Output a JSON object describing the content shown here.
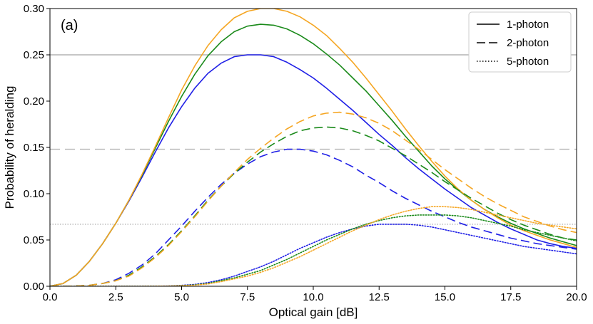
{
  "chart_data": {
    "type": "line",
    "title": "",
    "panel_label": "(a)",
    "xlabel": "Optical gain [dB]",
    "ylabel": "Probability of heralding",
    "xlim": [
      0,
      20
    ],
    "ylim": [
      0,
      0.3
    ],
    "xticks": [
      "0.0",
      "2.5",
      "5.0",
      "7.5",
      "10.0",
      "12.5",
      "15.0",
      "17.5",
      "20.0"
    ],
    "yticks": [
      "0.00",
      "0.05",
      "0.10",
      "0.15",
      "0.20",
      "0.25",
      "0.30"
    ],
    "grid": false,
    "legend": {
      "placement": "top-right",
      "entries": [
        {
          "label": "1-photon",
          "dash": "solid"
        },
        {
          "label": "2-photon",
          "dash": "dashed"
        },
        {
          "label": "5-photon",
          "dash": "dotted"
        }
      ]
    },
    "colors": {
      "blue": "#1f1fe6",
      "green": "#1a8a1a",
      "orange": "#f5a623",
      "reference": "#b4b4b4"
    },
    "reference_lines": [
      {
        "y": 0.25,
        "dash": "solid"
      },
      {
        "y": 0.148,
        "dash": "dashed"
      },
      {
        "y": 0.067,
        "dash": "dotted"
      }
    ],
    "x": [
      0,
      0.5,
      1,
      1.5,
      2,
      2.5,
      3,
      3.5,
      4,
      4.5,
      5,
      5.5,
      6,
      6.5,
      7,
      7.5,
      8,
      8.5,
      9,
      9.5,
      10,
      10.5,
      11,
      11.5,
      12,
      12.5,
      13,
      13.5,
      14,
      14.5,
      15,
      15.5,
      16,
      16.5,
      17,
      17.5,
      18,
      18.5,
      19,
      19.5,
      20
    ],
    "series": [
      {
        "name": "1-photon blue",
        "color": "blue",
        "dash": "solid",
        "values": [
          0,
          0.003,
          0.012,
          0.027,
          0.046,
          0.068,
          0.092,
          0.118,
          0.145,
          0.171,
          0.194,
          0.214,
          0.23,
          0.241,
          0.248,
          0.25,
          0.25,
          0.248,
          0.242,
          0.234,
          0.225,
          0.214,
          0.202,
          0.19,
          0.177,
          0.164,
          0.152,
          0.139,
          0.127,
          0.116,
          0.105,
          0.095,
          0.085,
          0.077,
          0.069,
          0.062,
          0.056,
          0.05,
          0.046,
          0.043,
          0.041
        ]
      },
      {
        "name": "1-photon green",
        "color": "green",
        "dash": "solid",
        "values": [
          0,
          0.003,
          0.012,
          0.027,
          0.046,
          0.068,
          0.093,
          0.12,
          0.149,
          0.178,
          0.205,
          0.229,
          0.249,
          0.264,
          0.275,
          0.281,
          0.283,
          0.282,
          0.278,
          0.271,
          0.262,
          0.251,
          0.239,
          0.225,
          0.211,
          0.195,
          0.179,
          0.162,
          0.146,
          0.13,
          0.116,
          0.104,
          0.093,
          0.083,
          0.075,
          0.068,
          0.062,
          0.057,
          0.052,
          0.048,
          0.044
        ]
      },
      {
        "name": "1-photon orange",
        "color": "orange",
        "dash": "solid",
        "values": [
          0,
          0.003,
          0.012,
          0.027,
          0.046,
          0.068,
          0.093,
          0.121,
          0.151,
          0.182,
          0.212,
          0.238,
          0.26,
          0.277,
          0.29,
          0.297,
          0.3,
          0.3,
          0.297,
          0.291,
          0.282,
          0.271,
          0.257,
          0.242,
          0.225,
          0.207,
          0.189,
          0.17,
          0.152,
          0.135,
          0.119,
          0.105,
          0.093,
          0.083,
          0.074,
          0.066,
          0.06,
          0.055,
          0.05,
          0.046,
          0.042
        ]
      },
      {
        "name": "2-photon blue",
        "color": "blue",
        "dash": "dashed",
        "values": [
          0,
          0,
          0.0003,
          0.001,
          0.003,
          0.007,
          0.014,
          0.023,
          0.035,
          0.05,
          0.065,
          0.081,
          0.096,
          0.11,
          0.122,
          0.132,
          0.14,
          0.145,
          0.148,
          0.148,
          0.146,
          0.142,
          0.136,
          0.129,
          0.12,
          0.112,
          0.103,
          0.095,
          0.088,
          0.081,
          0.075,
          0.069,
          0.064,
          0.06,
          0.056,
          0.052,
          0.049,
          0.046,
          0.044,
          0.042,
          0.04
        ]
      },
      {
        "name": "2-photon green",
        "color": "green",
        "dash": "dashed",
        "values": [
          0,
          0,
          0.0003,
          0.001,
          0.003,
          0.006,
          0.012,
          0.021,
          0.032,
          0.045,
          0.06,
          0.076,
          0.093,
          0.108,
          0.122,
          0.134,
          0.145,
          0.154,
          0.162,
          0.168,
          0.171,
          0.172,
          0.171,
          0.168,
          0.163,
          0.157,
          0.149,
          0.141,
          0.132,
          0.123,
          0.113,
          0.104,
          0.095,
          0.087,
          0.079,
          0.072,
          0.066,
          0.061,
          0.056,
          0.052,
          0.05
        ]
      },
      {
        "name": "2-photon orange",
        "color": "orange",
        "dash": "dashed",
        "values": [
          0,
          0,
          0.0003,
          0.001,
          0.003,
          0.006,
          0.011,
          0.02,
          0.031,
          0.044,
          0.059,
          0.075,
          0.092,
          0.108,
          0.123,
          0.137,
          0.149,
          0.16,
          0.17,
          0.178,
          0.184,
          0.187,
          0.188,
          0.186,
          0.182,
          0.176,
          0.168,
          0.158,
          0.148,
          0.137,
          0.126,
          0.116,
          0.106,
          0.097,
          0.089,
          0.082,
          0.075,
          0.07,
          0.065,
          0.061,
          0.058
        ]
      },
      {
        "name": "5-photon blue",
        "color": "blue",
        "dash": "dotted",
        "values": [
          0,
          0,
          0,
          0,
          0,
          0,
          0,
          0,
          0.0001,
          0.0003,
          0.001,
          0.002,
          0.004,
          0.007,
          0.011,
          0.016,
          0.021,
          0.027,
          0.034,
          0.041,
          0.047,
          0.053,
          0.058,
          0.062,
          0.065,
          0.067,
          0.067,
          0.067,
          0.066,
          0.064,
          0.061,
          0.058,
          0.055,
          0.052,
          0.049,
          0.046,
          0.043,
          0.041,
          0.039,
          0.037,
          0.035
        ]
      },
      {
        "name": "5-photon green",
        "color": "green",
        "dash": "dotted",
        "values": [
          0,
          0,
          0,
          0,
          0,
          0,
          0,
          0,
          0.0001,
          0.0002,
          0.0008,
          0.0015,
          0.003,
          0.006,
          0.009,
          0.013,
          0.017,
          0.023,
          0.029,
          0.036,
          0.043,
          0.05,
          0.056,
          0.062,
          0.067,
          0.071,
          0.074,
          0.076,
          0.077,
          0.077,
          0.077,
          0.076,
          0.074,
          0.071,
          0.068,
          0.065,
          0.061,
          0.058,
          0.055,
          0.052,
          0.049
        ]
      },
      {
        "name": "5-photon orange",
        "color": "orange",
        "dash": "dotted",
        "values": [
          0,
          0,
          0,
          0,
          0,
          0,
          0,
          0,
          0.0001,
          0.0002,
          0.0006,
          0.0012,
          0.0025,
          0.005,
          0.008,
          0.011,
          0.015,
          0.02,
          0.026,
          0.032,
          0.039,
          0.046,
          0.053,
          0.06,
          0.066,
          0.072,
          0.077,
          0.081,
          0.084,
          0.086,
          0.086,
          0.085,
          0.083,
          0.08,
          0.077,
          0.074,
          0.071,
          0.068,
          0.066,
          0.064,
          0.062
        ]
      }
    ]
  }
}
